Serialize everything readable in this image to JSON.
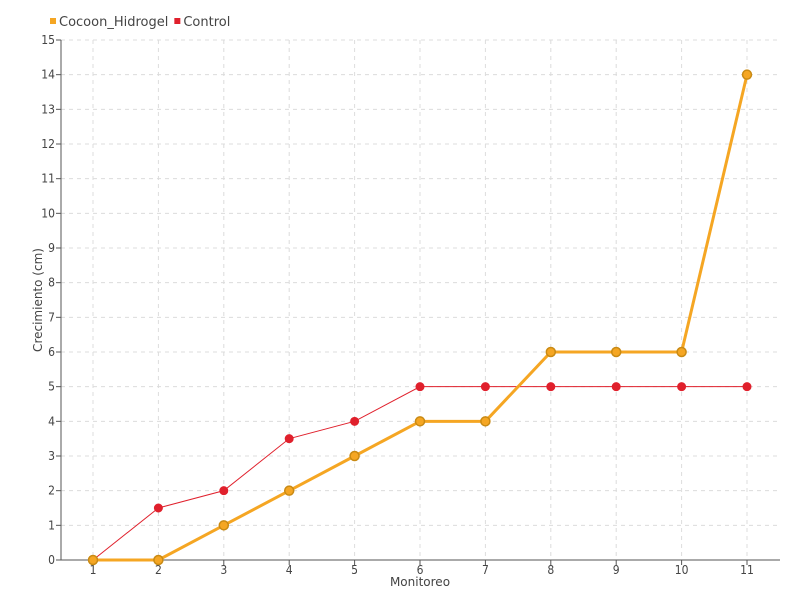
{
  "chart_data": {
    "type": "line",
    "title": "",
    "xlabel": "Monitoreo",
    "ylabel": "Crecimiento (cm)",
    "x": [
      "1",
      "2",
      "3",
      "4",
      "5",
      "6",
      "7",
      "8",
      "9",
      "10",
      "11"
    ],
    "ylim": [
      0,
      15
    ],
    "yticks": [
      "0",
      "1",
      "2",
      "3",
      "4",
      "5",
      "6",
      "7",
      "8",
      "9",
      "10",
      "11",
      "12",
      "13",
      "14",
      "15"
    ],
    "grid": true,
    "legend_position": "top-left",
    "series": [
      {
        "name": "Cocoon_Hidrogel",
        "color": "#f5a623",
        "values": [
          0,
          0,
          1,
          2,
          3,
          4,
          4,
          6,
          6,
          6,
          14
        ]
      },
      {
        "name": "Control",
        "color": "#e0202c",
        "values": [
          0,
          1.5,
          2,
          3.5,
          4,
          5,
          5,
          5,
          5,
          5,
          5
        ]
      }
    ]
  }
}
